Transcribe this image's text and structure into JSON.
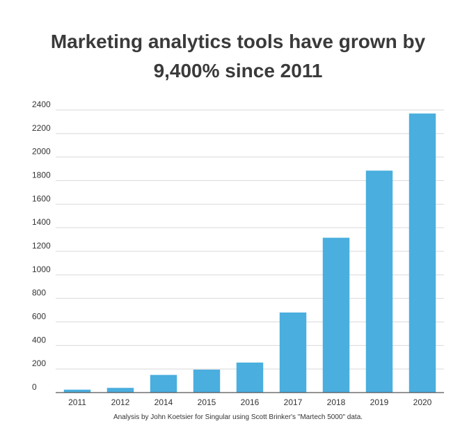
{
  "chart_data": {
    "type": "bar",
    "title_line1": "Marketing analytics tools have grown by",
    "title_line2": "9,400% since 2011",
    "categories": [
      "2011",
      "2012",
      "2014",
      "2015",
      "2016",
      "2017",
      "2018",
      "2019",
      "2020"
    ],
    "values": [
      25,
      40,
      150,
      195,
      255,
      680,
      1315,
      1885,
      2370
    ],
    "ylim": [
      0,
      2400
    ],
    "yticks": [
      0,
      200,
      400,
      600,
      800,
      1000,
      1200,
      1400,
      1600,
      1800,
      2000,
      2200,
      2400
    ],
    "grid": true,
    "bar_color": "#4aaede",
    "footnote": "Analysis by John Koetsier for Singular using Scott Brinker's \"Martech 5000\" data."
  }
}
